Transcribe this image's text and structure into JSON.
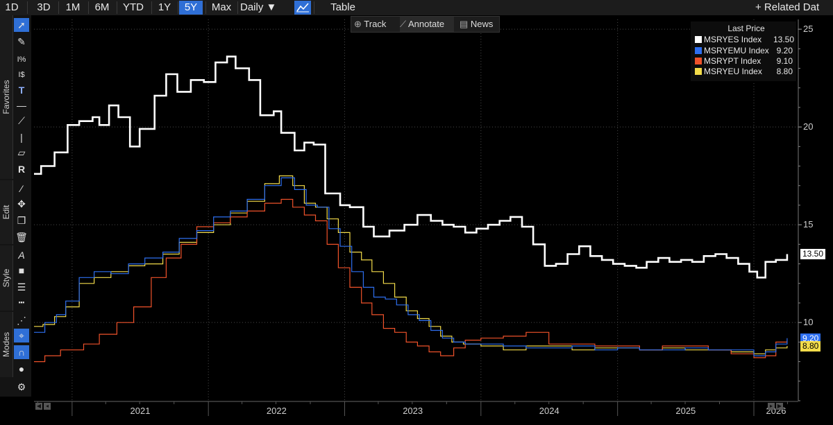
{
  "toolbar": {
    "ranges": [
      {
        "label": "1D",
        "name": "range-1d"
      },
      {
        "label": "3D",
        "name": "range-3d"
      },
      {
        "label": "1M",
        "name": "range-1m"
      },
      {
        "label": "6M",
        "name": "range-6m"
      },
      {
        "label": "YTD",
        "name": "range-ytd"
      },
      {
        "label": "1Y",
        "name": "range-1y"
      },
      {
        "label": "5Y",
        "name": "range-5y"
      },
      {
        "label": "Max",
        "name": "range-max"
      }
    ],
    "active_range": "5Y",
    "frequency": "Daily ▼",
    "chart_type_icon": "line-chart-icon",
    "table_label": "Table",
    "related_label": "+ Related Dat"
  },
  "left_tabs": {
    "favorites": "Favorites",
    "edit": "Edit",
    "style": "Style",
    "modes": "Modes"
  },
  "annotation_bar": {
    "track": "Track",
    "annotate": "Annotate",
    "news": "News"
  },
  "legend": {
    "title": "Last Price",
    "items": [
      {
        "name": "MSRYES Index",
        "value": "13.50",
        "color": "#ffffff"
      },
      {
        "name": "MSRYEMU Index",
        "value": "9.20",
        "color": "#2e6ff0"
      },
      {
        "name": "MSRYPT Index",
        "value": "9.10",
        "color": "#f0522a"
      },
      {
        "name": "MSRYEU Index",
        "value": "8.80",
        "color": "#f3dc4a"
      }
    ]
  },
  "price_tags": [
    {
      "value": "13.50",
      "bg": "#ffffff",
      "fg": "#000000"
    },
    {
      "value": "9.20",
      "bg": "#2e6ff0",
      "fg": "#ffffff"
    },
    {
      "value": "8.80",
      "bg": "#f3dc4a",
      "fg": "#000000"
    }
  ],
  "chart_data": {
    "type": "line",
    "title": "",
    "xlabel": "",
    "ylabel": "",
    "x_ticks": [
      "2021",
      "2022",
      "2023",
      "2024",
      "2025",
      "2026"
    ],
    "y_ticks": [
      10,
      15,
      20,
      25
    ],
    "ylim": [
      6.0,
      25.5
    ],
    "xlim": [
      "2020-09-21",
      "2026-04-30"
    ],
    "grid": true,
    "y_axis_side": "right",
    "legend_position": "top-right",
    "series": [
      {
        "name": "MSRYES Index",
        "color": "#ffffff",
        "width": 2.6,
        "x": [
          "2020-09-21",
          "2020-10-10",
          "2020-11-15",
          "2020-12-20",
          "2021-01-20",
          "2021-02-25",
          "2021-03-15",
          "2021-04-10",
          "2021-05-05",
          "2021-06-05",
          "2021-07-01",
          "2021-08-10",
          "2021-09-10",
          "2021-10-10",
          "2021-11-15",
          "2021-12-20",
          "2022-01-20",
          "2022-02-20",
          "2022-03-15",
          "2022-04-20",
          "2022-05-20",
          "2022-06-25",
          "2022-07-15",
          "2022-08-20",
          "2022-09-15",
          "2022-10-10",
          "2022-11-10",
          "2022-12-20",
          "2023-01-15",
          "2023-02-20",
          "2023-03-20",
          "2023-05-01",
          "2023-06-10",
          "2023-07-15",
          "2023-08-20",
          "2023-09-20",
          "2023-10-20",
          "2023-11-20",
          "2023-12-20",
          "2024-01-20",
          "2024-02-20",
          "2024-03-20",
          "2024-04-20",
          "2024-05-20",
          "2024-06-20",
          "2024-07-20",
          "2024-08-20",
          "2024-09-20",
          "2024-10-20",
          "2024-11-20",
          "2024-12-20",
          "2025-01-20",
          "2025-02-20",
          "2025-03-20",
          "2025-04-20",
          "2025-05-20",
          "2025-06-20",
          "2025-07-20",
          "2025-08-20",
          "2025-09-20",
          "2025-10-20",
          "2025-11-20",
          "2025-12-20",
          "2026-01-10",
          "2026-02-01",
          "2026-03-01",
          "2026-03-31"
        ],
        "y": [
          17.6,
          18.0,
          18.7,
          20.1,
          20.3,
          20.5,
          20.1,
          21.1,
          20.5,
          19.0,
          19.9,
          21.6,
          22.7,
          21.8,
          22.4,
          22.3,
          23.3,
          23.6,
          23.0,
          22.4,
          20.6,
          20.8,
          19.7,
          18.8,
          19.2,
          19.1,
          16.6,
          16.0,
          15.9,
          14.9,
          14.4,
          14.7,
          15.0,
          15.5,
          15.2,
          15.0,
          14.9,
          14.6,
          14.8,
          15.0,
          15.2,
          15.4,
          14.9,
          14.0,
          12.9,
          13.0,
          13.5,
          13.9,
          13.4,
          13.2,
          13.0,
          12.9,
          12.8,
          13.1,
          13.3,
          13.1,
          13.2,
          13.1,
          13.4,
          13.5,
          13.3,
          13.0,
          12.6,
          12.3,
          13.1,
          13.2,
          13.5
        ]
      },
      {
        "name": "MSRYEMU Index",
        "color": "#2e6ff0",
        "width": 1.2,
        "x": [
          "2020-09-21",
          "2020-10-20",
          "2020-11-20",
          "2020-12-15",
          "2021-01-20",
          "2021-03-01",
          "2021-04-15",
          "2021-06-01",
          "2021-07-15",
          "2021-09-01",
          "2021-10-15",
          "2021-12-01",
          "2022-01-15",
          "2022-03-01",
          "2022-04-15",
          "2022-06-01",
          "2022-07-15",
          "2022-08-20",
          "2022-09-20",
          "2022-10-20",
          "2022-11-20",
          "2022-12-20",
          "2023-01-20",
          "2023-02-20",
          "2023-03-20",
          "2023-04-20",
          "2023-05-20",
          "2023-06-20",
          "2023-07-20",
          "2023-08-20",
          "2023-09-20",
          "2023-10-20",
          "2023-11-20",
          "2024-01-01",
          "2024-03-01",
          "2024-05-01",
          "2024-07-01",
          "2024-09-01",
          "2024-11-01",
          "2025-01-01",
          "2025-03-01",
          "2025-05-01",
          "2025-07-01",
          "2025-09-01",
          "2025-11-01",
          "2026-01-01",
          "2026-02-01",
          "2026-03-01",
          "2026-03-31"
        ],
        "y": [
          9.5,
          10.0,
          10.4,
          11.1,
          12.3,
          12.6,
          12.5,
          13.0,
          13.3,
          13.6,
          14.3,
          14.7,
          15.4,
          15.7,
          16.3,
          17.0,
          17.4,
          16.8,
          16.0,
          15.9,
          14.8,
          13.9,
          12.6,
          11.8,
          11.3,
          11.2,
          10.9,
          10.4,
          10.1,
          9.6,
          9.2,
          9.0,
          8.9,
          8.9,
          8.8,
          8.7,
          8.7,
          8.8,
          8.6,
          8.7,
          8.6,
          8.6,
          8.7,
          8.6,
          8.6,
          8.3,
          8.5,
          8.9,
          9.2
        ]
      },
      {
        "name": "MSRYPT Index",
        "color": "#f0522a",
        "width": 1.2,
        "x": [
          "2020-09-21",
          "2020-10-20",
          "2020-12-01",
          "2021-02-01",
          "2021-03-15",
          "2021-05-01",
          "2021-06-15",
          "2021-08-01",
          "2021-09-10",
          "2021-10-20",
          "2021-12-01",
          "2022-01-15",
          "2022-03-01",
          "2022-04-15",
          "2022-06-01",
          "2022-07-15",
          "2022-08-15",
          "2022-09-15",
          "2022-10-15",
          "2022-11-15",
          "2022-12-15",
          "2023-01-15",
          "2023-02-15",
          "2023-03-15",
          "2023-04-15",
          "2023-05-15",
          "2023-06-15",
          "2023-07-15",
          "2023-08-15",
          "2023-09-15",
          "2023-10-20",
          "2023-11-20",
          "2024-01-01",
          "2024-03-01",
          "2024-05-01",
          "2024-07-01",
          "2024-09-01",
          "2024-11-01",
          "2025-01-01",
          "2025-03-01",
          "2025-05-01",
          "2025-07-01",
          "2025-09-01",
          "2025-11-01",
          "2026-01-01",
          "2026-02-01",
          "2026-03-01",
          "2026-03-31"
        ],
        "y": [
          8.0,
          8.3,
          8.6,
          8.9,
          9.4,
          10.0,
          10.8,
          12.3,
          13.3,
          14.0,
          14.9,
          15.1,
          15.4,
          15.7,
          16.1,
          16.3,
          15.9,
          15.5,
          15.2,
          14.0,
          12.8,
          11.8,
          11.0,
          10.4,
          9.7,
          9.5,
          9.0,
          8.8,
          8.5,
          8.3,
          8.7,
          9.1,
          9.2,
          9.3,
          9.5,
          8.9,
          8.9,
          8.8,
          8.8,
          8.6,
          8.8,
          8.8,
          8.6,
          8.4,
          8.2,
          8.3,
          9.0,
          9.1
        ]
      },
      {
        "name": "MSRYEU Index",
        "color": "#f3dc4a",
        "width": 1.2,
        "x": [
          "2020-09-21",
          "2020-10-15",
          "2020-11-15",
          "2020-12-15",
          "2021-01-20",
          "2021-03-01",
          "2021-04-15",
          "2021-06-01",
          "2021-07-15",
          "2021-09-01",
          "2021-10-15",
          "2021-12-01",
          "2022-01-15",
          "2022-03-01",
          "2022-04-15",
          "2022-06-01",
          "2022-07-10",
          "2022-08-15",
          "2022-09-15",
          "2022-10-15",
          "2022-11-15",
          "2022-12-15",
          "2023-01-15",
          "2023-02-15",
          "2023-03-15",
          "2023-04-15",
          "2023-05-15",
          "2023-06-15",
          "2023-07-15",
          "2023-08-15",
          "2023-09-15",
          "2023-10-15",
          "2023-11-15",
          "2024-01-01",
          "2024-03-01",
          "2024-05-01",
          "2024-07-01",
          "2024-09-01",
          "2024-11-01",
          "2025-01-01",
          "2025-03-01",
          "2025-05-01",
          "2025-07-01",
          "2025-09-01",
          "2025-11-01",
          "2026-01-01",
          "2026-02-01",
          "2026-03-01",
          "2026-03-31"
        ],
        "y": [
          9.8,
          9.9,
          10.3,
          10.8,
          12.0,
          12.3,
          12.6,
          12.9,
          13.0,
          13.5,
          14.1,
          14.6,
          15.0,
          15.6,
          16.2,
          17.1,
          17.5,
          17.0,
          16.1,
          15.9,
          15.3,
          14.6,
          13.6,
          13.2,
          12.6,
          12.0,
          11.3,
          10.6,
          10.2,
          9.8,
          9.3,
          9.0,
          8.9,
          8.8,
          8.6,
          8.8,
          8.8,
          8.6,
          8.7,
          8.7,
          8.6,
          8.7,
          8.6,
          8.6,
          8.5,
          8.4,
          8.6,
          8.7,
          8.8
        ]
      }
    ]
  }
}
